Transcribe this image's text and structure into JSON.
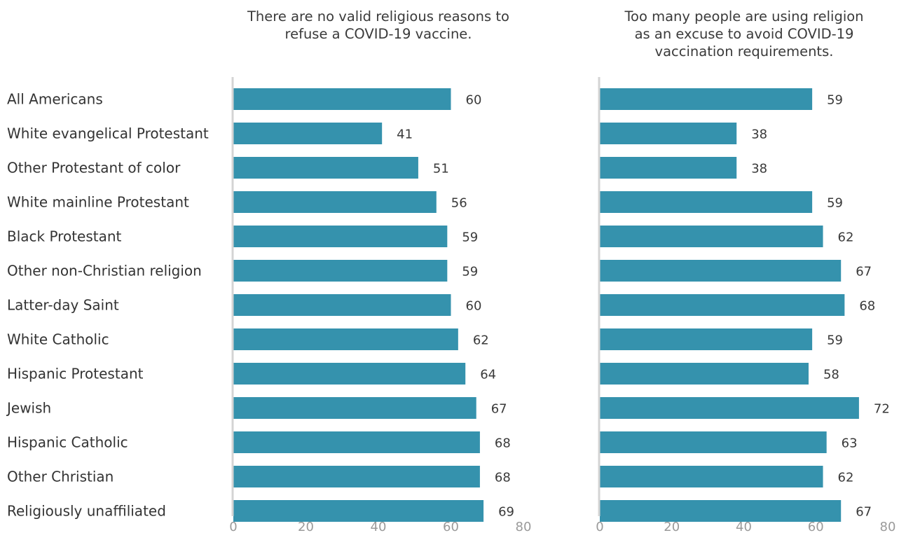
{
  "chart_data": [
    {
      "type": "bar",
      "orientation": "horizontal",
      "title_lines": [
        "There are no valid religious reasons to",
        "refuse a COVID-19 vaccine."
      ],
      "categories": [
        "All Americans",
        "White evangelical Protestant",
        "Other Protestant of color",
        "White mainline Protestant",
        "Black Protestant",
        "Other non-Christian religion",
        "Latter-day Saint",
        "White Catholic",
        "Hispanic Protestant",
        "Jewish",
        "Hispanic Catholic",
        "Other Christian",
        "Religiously unaffiliated"
      ],
      "values": [
        60,
        41,
        51,
        56,
        59,
        59,
        60,
        62,
        64,
        67,
        68,
        68,
        69
      ],
      "xlim": [
        0,
        80
      ],
      "ticks": [
        0,
        20,
        40,
        60,
        80
      ],
      "grid": false,
      "bar_color": "#3592ad"
    },
    {
      "type": "bar",
      "orientation": "horizontal",
      "title_lines": [
        "Too many people are using religion",
        "as an excuse to avoid COVID-19",
        "vaccination requirements."
      ],
      "categories": [
        "All Americans",
        "White evangelical Protestant",
        "Other Protestant of color",
        "White mainline Protestant",
        "Black Protestant",
        "Other non-Christian religion",
        "Latter-day Saint",
        "White Catholic",
        "Hispanic Protestant",
        "Jewish",
        "Hispanic Catholic",
        "Other Christian",
        "Religiously unaffiliated"
      ],
      "values": [
        59,
        38,
        38,
        59,
        62,
        67,
        68,
        59,
        58,
        72,
        63,
        62,
        67
      ],
      "xlim": [
        0,
        80
      ],
      "ticks": [
        0,
        20,
        40,
        60,
        80
      ],
      "grid": false,
      "bar_color": "#3592ad"
    }
  ]
}
